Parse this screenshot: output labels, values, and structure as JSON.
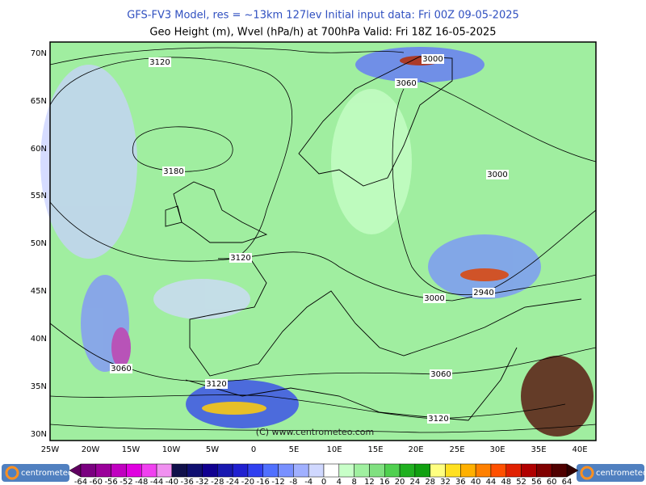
{
  "header": {
    "line1": "GFS-FV3 Model, res = ~13km 127lev    Initial input data: Fri 00Z 09-05-2025",
    "line2": "Geo Height (m), Wvel (hPa/h) at 700hPa  Valid: Fri 18Z 16-05-2025"
  },
  "map": {
    "lat_labels": [
      "70N",
      "65N",
      "60N",
      "55N",
      "50N",
      "45N",
      "40N",
      "35N",
      "30N"
    ],
    "lon_labels": [
      "25W",
      "20W",
      "15W",
      "10W",
      "5W",
      "0",
      "5E",
      "10E",
      "15E",
      "20E",
      "25E",
      "30E",
      "35E",
      "40E"
    ],
    "contour_labels": [
      "3120",
      "3180",
      "3120",
      "3000",
      "3060",
      "3000",
      "2940",
      "3000",
      "3060",
      "3120",
      "3060",
      "3120"
    ],
    "watermark": "(C) www.centrometeo.com"
  },
  "colorbar": {
    "labels": [
      -64,
      -60,
      -56,
      -52,
      -48,
      -44,
      -40,
      -36,
      -32,
      -28,
      -24,
      -20,
      -16,
      -12,
      -8,
      -4,
      0,
      4,
      8,
      12,
      16,
      20,
      24,
      28,
      32,
      36,
      40,
      44,
      48,
      52,
      56,
      60,
      64
    ],
    "colors": [
      "#7a0080",
      "#9a009a",
      "#c000c0",
      "#e000e0",
      "#f040f0",
      "#f090f0",
      "#10104a",
      "#101070",
      "#100090",
      "#1818b0",
      "#2020d0",
      "#3040f0",
      "#5070ff",
      "#7890ff",
      "#a0b0ff",
      "#d0d8ff",
      "#ffffff",
      "#c8ffc8",
      "#a0f0a0",
      "#80e080",
      "#50d050",
      "#20b020",
      "#10a010",
      "#ffff80",
      "#ffe020",
      "#ffb000",
      "#ff8000",
      "#ff5000",
      "#e02000",
      "#b00000",
      "#800000",
      "#500000"
    ],
    "under_color": "#600060",
    "over_color": "#300000"
  },
  "logos": {
    "left": "centrometeo",
    "right": "centrometeo"
  }
}
